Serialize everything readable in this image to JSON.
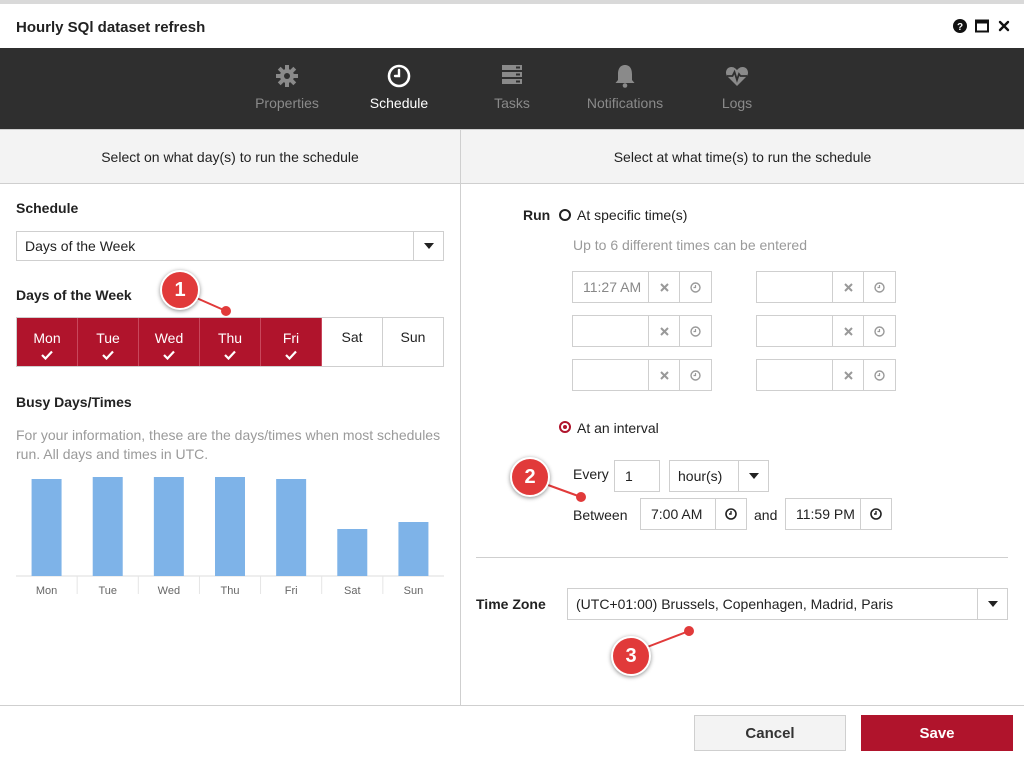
{
  "window": {
    "title": "Hourly SQl dataset refresh",
    "controls": [
      "help-icon",
      "maximize-icon",
      "close-icon"
    ]
  },
  "nav": {
    "tabs": [
      {
        "label": "Properties",
        "icon": "gear-icon",
        "active": false
      },
      {
        "label": "Schedule",
        "icon": "clock-icon",
        "active": true
      },
      {
        "label": "Tasks",
        "icon": "tasks-icon",
        "active": false
      },
      {
        "label": "Notifications",
        "icon": "bell-icon",
        "active": false
      },
      {
        "label": "Logs",
        "icon": "heartbeat-icon",
        "active": false
      }
    ]
  },
  "left": {
    "header": "Select on what day(s) to run the schedule",
    "schedule_label": "Schedule",
    "schedule_value": "Days of the Week",
    "days_label": "Days of the Week",
    "days": [
      {
        "label": "Mon",
        "selected": true
      },
      {
        "label": "Tue",
        "selected": true
      },
      {
        "label": "Wed",
        "selected": true
      },
      {
        "label": "Thu",
        "selected": true
      },
      {
        "label": "Fri",
        "selected": true
      },
      {
        "label": "Sat",
        "selected": false
      },
      {
        "label": "Sun",
        "selected": false
      }
    ],
    "busy_label": "Busy Days/Times",
    "busy_desc_1": "For your information, these are the days/times when most schedules",
    "busy_desc_2": "run. All days and times in UTC."
  },
  "chart_data": {
    "type": "bar",
    "categories": [
      "Mon",
      "Tue",
      "Wed",
      "Thu",
      "Fri",
      "Sat",
      "Sun"
    ],
    "values": [
      97,
      99,
      99,
      99,
      97,
      47,
      54
    ],
    "ylim": [
      0,
      100
    ],
    "bar_color": "#7eb3e8"
  },
  "right": {
    "header": "Select at what time(s) to run the schedule",
    "run_label": "Run",
    "specific_label": "At specific time(s)",
    "specific_hint": "Up to 6 different times can be entered",
    "specific_times": [
      "11:27 AM",
      "",
      "",
      "",
      "",
      ""
    ],
    "interval_label": "At an interval",
    "every_label": "Every",
    "every_value": "1",
    "unit_value": "hour(s)",
    "between_label": "Between",
    "start_time": "7:00 AM",
    "and_label": "and",
    "end_time": "11:59 PM",
    "timezone_label": "Time Zone",
    "timezone_value": "(UTC+01:00) Brussels, Copenhagen, Madrid, Paris"
  },
  "footer": {
    "cancel_label": "Cancel",
    "save_label": "Save"
  },
  "callouts": [
    "1",
    "2",
    "3"
  ],
  "colors": {
    "accent": "#b0142c",
    "nav_bg": "#2f2f2f",
    "callout": "#e13a3a"
  }
}
